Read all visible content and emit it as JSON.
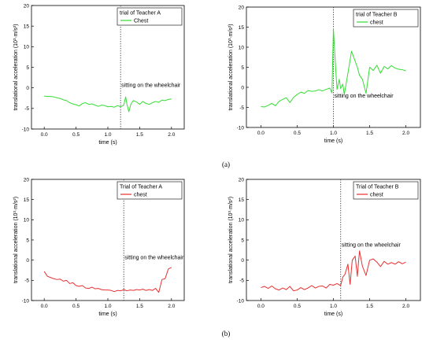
{
  "captions": {
    "a": "(a)",
    "b": "(b)"
  },
  "chart_data": [
    {
      "type": "line",
      "legend_title": "trial of Teacher A",
      "series": [
        {
          "name": "Chest",
          "color": "#33dd33",
          "x": [
            0.0,
            0.05,
            0.1,
            0.15,
            0.2,
            0.25,
            0.3,
            0.35,
            0.4,
            0.45,
            0.5,
            0.55,
            0.6,
            0.65,
            0.7,
            0.75,
            0.8,
            0.85,
            0.9,
            0.95,
            1.0,
            1.05,
            1.1,
            1.15,
            1.2,
            1.25,
            1.28,
            1.3,
            1.33,
            1.36,
            1.4,
            1.45,
            1.5,
            1.55,
            1.6,
            1.65,
            1.7,
            1.75,
            1.8,
            1.85,
            1.9,
            1.95,
            2.0
          ],
          "values": [
            -2.0,
            -2.1,
            -2.1,
            -2.2,
            -2.4,
            -2.6,
            -2.9,
            -3.1,
            -3.6,
            -3.9,
            -4.1,
            -4.4,
            -3.8,
            -3.6,
            -4.0,
            -3.9,
            -4.2,
            -4.5,
            -4.2,
            -4.3,
            -4.6,
            -4.5,
            -4.7,
            -4.3,
            -4.6,
            -4.2,
            -2.2,
            -4.0,
            -5.8,
            -4.0,
            -3.1,
            -3.4,
            -4.0,
            -3.3,
            -3.8,
            -4.0,
            -3.6,
            -3.3,
            -3.5,
            -3.0,
            -3.1,
            -2.8,
            -2.7
          ]
        }
      ],
      "xlabel": "time (s)",
      "ylabel": "translational acceleration (10³·m/s²)",
      "xticks": [
        "0.0",
        "0.5",
        "1.0",
        "1.5",
        "2.0"
      ],
      "yticks": [
        "-10",
        "-5",
        "0",
        "5",
        "10",
        "15",
        "20"
      ],
      "xlim": [
        -0.2,
        2.2
      ],
      "ylim": [
        -10,
        20
      ],
      "marker_x": 1.2,
      "annotation": "sitting on the wheelchair",
      "legend_position": "top-right"
    },
    {
      "type": "line",
      "legend_title": "trial of Teacher B",
      "series": [
        {
          "name": "chest",
          "color": "#33dd33",
          "x": [
            0.0,
            0.05,
            0.1,
            0.15,
            0.2,
            0.25,
            0.3,
            0.35,
            0.4,
            0.45,
            0.5,
            0.55,
            0.6,
            0.65,
            0.7,
            0.75,
            0.8,
            0.85,
            0.9,
            0.95,
            0.98,
            1.0,
            1.03,
            1.05,
            1.08,
            1.1,
            1.13,
            1.15,
            1.2,
            1.25,
            1.3,
            1.33,
            1.36,
            1.4,
            1.45,
            1.5,
            1.55,
            1.6,
            1.65,
            1.7,
            1.75,
            1.8,
            1.85,
            1.9,
            1.95,
            2.0
          ],
          "values": [
            -4.8,
            -4.9,
            -4.5,
            -4.0,
            -4.6,
            -3.5,
            -3.0,
            -2.6,
            -3.8,
            -2.5,
            -1.8,
            -1.2,
            -1.5,
            -0.8,
            -1.0,
            -0.9,
            -0.6,
            -0.9,
            -0.5,
            -0.2,
            -1.4,
            14.6,
            5.0,
            -0.5,
            2.0,
            -0.3,
            0.8,
            -1.8,
            3.5,
            9.0,
            6.5,
            5.0,
            3.0,
            2.0,
            -1.5,
            5.0,
            4.2,
            5.5,
            3.5,
            5.2,
            4.6,
            5.4,
            4.8,
            4.5,
            4.4,
            4.1
          ]
        }
      ],
      "xlabel": "time (s)",
      "ylabel": "translational acceleration (10³·m/s²)",
      "xticks": [
        "0.0",
        "0.5",
        "1.0",
        "1.5",
        "2.0"
      ],
      "yticks": [
        "-10",
        "-5",
        "0",
        "5",
        "10",
        "15",
        "20"
      ],
      "xlim": [
        -0.2,
        2.2
      ],
      "ylim": [
        -10,
        20
      ],
      "marker_x": 1.0,
      "annotation": "sitting on the wheelchair",
      "legend_position": "top-right"
    },
    {
      "type": "line",
      "legend_title": "Trial of Teacher A",
      "series": [
        {
          "name": "chest",
          "color": "#e83030",
          "x": [
            0.0,
            0.05,
            0.1,
            0.15,
            0.2,
            0.25,
            0.3,
            0.35,
            0.4,
            0.45,
            0.5,
            0.55,
            0.6,
            0.65,
            0.7,
            0.75,
            0.8,
            0.85,
            0.9,
            0.95,
            1.0,
            1.05,
            1.1,
            1.15,
            1.2,
            1.25,
            1.3,
            1.35,
            1.4,
            1.45,
            1.5,
            1.55,
            1.6,
            1.65,
            1.7,
            1.75,
            1.8,
            1.85,
            1.9,
            1.95,
            2.0
          ],
          "values": [
            -2.8,
            -4.0,
            -4.3,
            -4.6,
            -4.8,
            -4.7,
            -5.2,
            -5.0,
            -5.8,
            -5.6,
            -6.3,
            -6.5,
            -6.3,
            -6.9,
            -7.0,
            -6.7,
            -7.1,
            -7.0,
            -7.3,
            -7.4,
            -7.4,
            -7.5,
            -7.8,
            -7.5,
            -7.6,
            -7.3,
            -7.6,
            -7.4,
            -7.5,
            -7.3,
            -7.4,
            -7.2,
            -7.5,
            -7.3,
            -7.5,
            -7.0,
            -8.0,
            -4.8,
            -4.6,
            -2.2,
            -1.8
          ]
        }
      ],
      "xlabel": "time (s)",
      "ylabel": "translational acceleration (10³·m/s²)",
      "xticks": [
        "0.0",
        "0.5",
        "1.0",
        "1.5",
        "2.0"
      ],
      "yticks": [
        "-10",
        "-5",
        "0",
        "5",
        "10",
        "15",
        "20"
      ],
      "xlim": [
        -0.2,
        2.2
      ],
      "ylim": [
        -10,
        20
      ],
      "marker_x": 1.25,
      "annotation": "sitting on the wheelchair",
      "legend_position": "top-right"
    },
    {
      "type": "line",
      "legend_title": "Trial of Teacher B",
      "series": [
        {
          "name": "chest",
          "color": "#e83030",
          "x": [
            0.0,
            0.05,
            0.1,
            0.15,
            0.2,
            0.25,
            0.3,
            0.35,
            0.4,
            0.45,
            0.5,
            0.55,
            0.6,
            0.65,
            0.7,
            0.75,
            0.8,
            0.85,
            0.9,
            0.95,
            1.0,
            1.05,
            1.1,
            1.13,
            1.16,
            1.2,
            1.23,
            1.26,
            1.3,
            1.33,
            1.36,
            1.4,
            1.45,
            1.5,
            1.55,
            1.6,
            1.65,
            1.7,
            1.75,
            1.8,
            1.85,
            1.9,
            1.95,
            2.0
          ],
          "values": [
            -6.8,
            -6.5,
            -7.0,
            -6.4,
            -7.1,
            -7.4,
            -6.9,
            -7.3,
            -6.5,
            -7.6,
            -7.4,
            -6.8,
            -7.3,
            -6.9,
            -6.3,
            -6.9,
            -6.5,
            -6.4,
            -6.9,
            -6.0,
            -6.2,
            -5.8,
            -6.3,
            -4.2,
            -3.5,
            -1.0,
            -6.0,
            0.0,
            1.0,
            -4.0,
            2.3,
            -1.5,
            -3.8,
            0.0,
            0.3,
            -0.5,
            -1.6,
            -0.3,
            -1.0,
            -0.6,
            -1.0,
            -0.4,
            -0.9,
            -0.5
          ]
        }
      ],
      "xlabel": "time (s)",
      "ylabel": "translational acceleration (10³·m/s²)",
      "xticks": [
        "0.0",
        "0.5",
        "1.0",
        "1.5",
        "2.0"
      ],
      "yticks": [
        "-10",
        "-5",
        "0",
        "5",
        "10",
        "15",
        "20"
      ],
      "xlim": [
        -0.2,
        2.2
      ],
      "ylim": [
        -10,
        20
      ],
      "marker_x": 1.1,
      "annotation": "sitting on the wheelchair",
      "legend_position": "top-right"
    }
  ]
}
